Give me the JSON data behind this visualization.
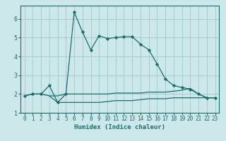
{
  "xlabel": "Humidex (Indice chaleur)",
  "ylabel": "",
  "xlim": [
    -0.5,
    23.5
  ],
  "ylim": [
    1.0,
    6.7
  ],
  "yticks": [
    1,
    2,
    3,
    4,
    5,
    6
  ],
  "xticks": [
    0,
    1,
    2,
    3,
    4,
    5,
    6,
    7,
    8,
    9,
    10,
    11,
    12,
    13,
    14,
    15,
    16,
    17,
    18,
    19,
    20,
    21,
    22,
    23
  ],
  "bg_color": "#cce8ea",
  "grid_color": "#a0c8cc",
  "line_color": "#1a6e6e",
  "line1": {
    "x": [
      0,
      1,
      2,
      3,
      4,
      5,
      6,
      7,
      8,
      9,
      10,
      11,
      12,
      13,
      14,
      15,
      16,
      17,
      18,
      19,
      20,
      21,
      22,
      23
    ],
    "y": [
      1.9,
      2.0,
      2.0,
      2.45,
      1.55,
      2.0,
      6.35,
      5.3,
      4.35,
      5.1,
      4.95,
      5.0,
      5.05,
      5.05,
      4.65,
      4.35,
      3.6,
      2.8,
      2.45,
      2.35,
      2.25,
      2.0,
      1.8,
      1.8
    ]
  },
  "line2": {
    "x": [
      0,
      1,
      2,
      3,
      4,
      5,
      6,
      7,
      8,
      9,
      10,
      11,
      12,
      13,
      14,
      15,
      16,
      17,
      18,
      19,
      20,
      21,
      22,
      23
    ],
    "y": [
      1.9,
      2.0,
      2.0,
      1.9,
      1.9,
      2.0,
      2.0,
      2.0,
      2.0,
      2.0,
      2.0,
      2.05,
      2.05,
      2.05,
      2.05,
      2.1,
      2.1,
      2.1,
      2.15,
      2.2,
      2.3,
      2.0,
      1.8,
      1.8
    ]
  },
  "line3": {
    "x": [
      3,
      4,
      5,
      6,
      7,
      8,
      9,
      10,
      11,
      12,
      13,
      14,
      15,
      16,
      17,
      18,
      19,
      20,
      21,
      22,
      23
    ],
    "y": [
      1.9,
      1.55,
      1.55,
      1.55,
      1.55,
      1.55,
      1.55,
      1.6,
      1.65,
      1.65,
      1.65,
      1.7,
      1.75,
      1.75,
      1.75,
      1.8,
      1.8,
      1.8,
      1.8,
      1.8,
      1.8
    ]
  }
}
